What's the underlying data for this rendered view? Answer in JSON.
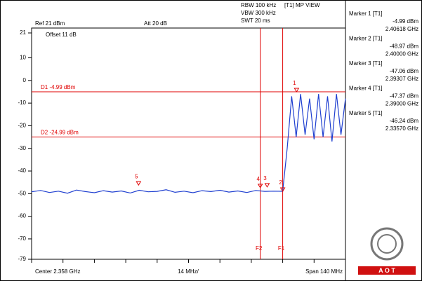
{
  "chart_data": {
    "type": "line",
    "header": [
      "RBW 100 kHz",
      "VBW 300 kHz",
      "SWT 20 ms"
    ],
    "view": "[T1] MP VIEW",
    "ref": "Ref 21 dBm",
    "att": "Att 20 dB",
    "offset": "Offset 11 dB",
    "center": "Center 2.358 GHz",
    "division": "14 MHz/",
    "span": "Span 140 MHz",
    "logo": "A O T",
    "ylim": [
      -79,
      21
    ],
    "yticks": [
      21,
      10,
      0,
      -10,
      -20,
      -30,
      -40,
      -50,
      -60,
      -70,
      -79
    ],
    "xlim": [
      2.288,
      2.428
    ],
    "xticks": [
      2.288,
      2.302,
      2.316,
      2.33,
      2.344,
      2.358,
      2.372,
      2.386,
      2.4,
      2.414,
      2.428
    ],
    "x": [
      2.288,
      2.292,
      2.296,
      2.3,
      2.304,
      2.308,
      2.312,
      2.316,
      2.32,
      2.324,
      2.328,
      2.332,
      2.336,
      2.34,
      2.344,
      2.348,
      2.352,
      2.356,
      2.36,
      2.364,
      2.368,
      2.372,
      2.376,
      2.38,
      2.384,
      2.388,
      2.392,
      2.396,
      2.4,
      2.402,
      2.404,
      2.406,
      2.408,
      2.41,
      2.412,
      2.414,
      2.416,
      2.418,
      2.42,
      2.422,
      2.424,
      2.426,
      2.428
    ],
    "series": [
      {
        "color": "#1f3fd0",
        "values": [
          -49.2,
          -48.6,
          -49.5,
          -48.9,
          -49.8,
          -48.4,
          -49.1,
          -49.6,
          -48.7,
          -49.3,
          -48.8,
          -49.7,
          -48.5,
          -49.2,
          -49.0,
          -48.3,
          -49.4,
          -48.9,
          -49.6,
          -48.7,
          -49.1,
          -48.5,
          -49.3,
          -48.8,
          -49.5,
          -48.6,
          -49.0,
          -48.9,
          -48.97,
          -30,
          -7,
          -25,
          -6,
          -24,
          -8,
          -26,
          -6,
          -25,
          -7,
          -27,
          -6,
          -24,
          -8
        ]
      }
    ],
    "display_lines": [
      {
        "label": "D1 -4.99 dBm",
        "value": -4.99
      },
      {
        "label": "D2 -24.99 dBm",
        "value": -24.99
      }
    ],
    "frequency_lines": [
      {
        "label": "F2",
        "value": 2.39
      },
      {
        "label": "F1",
        "value": 2.4
      }
    ],
    "markers": [
      {
        "name": "Marker 1 [T1]",
        "label": "1",
        "value": -4.99,
        "value_label": "-4.99 dBm",
        "x": 2.40618,
        "x_label": "2.40618 GHz"
      },
      {
        "name": "Marker 2 [T1]",
        "label": "2",
        "value": -48.97,
        "value_label": "-48.97 dBm",
        "x": 2.4,
        "x_label": "2.40000 GHz"
      },
      {
        "name": "Marker 3 [T1]",
        "label": "3",
        "value": -47.06,
        "value_label": "-47.06 dBm",
        "x": 2.39307,
        "x_label": "2.39307 GHz"
      },
      {
        "name": "Marker 4 [T1]",
        "label": "4",
        "value": -47.37,
        "value_label": "-47.37 dBm",
        "x": 2.39,
        "x_label": "2.39000 GHz"
      },
      {
        "name": "Marker 5 [T1]",
        "label": "5",
        "value": -46.24,
        "value_label": "-46.24 dBm",
        "x": 2.3357,
        "x_label": "2.33570 GHz"
      }
    ]
  }
}
